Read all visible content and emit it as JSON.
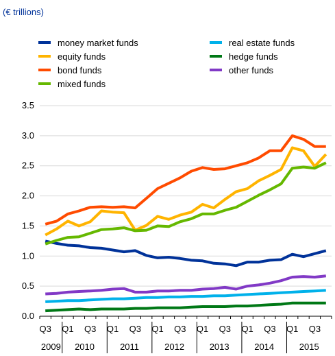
{
  "chart_data": {
    "type": "line",
    "unit_label": "(€ trillions)",
    "x": [
      "2009 Q3",
      "2009 Q4",
      "2010 Q1",
      "2010 Q2",
      "2010 Q3",
      "2010 Q4",
      "2011 Q1",
      "2011 Q2",
      "2011 Q3",
      "2011 Q4",
      "2012 Q1",
      "2012 Q2",
      "2012 Q3",
      "2012 Q4",
      "2013 Q1",
      "2013 Q2",
      "2013 Q3",
      "2013 Q4",
      "2014 Q1",
      "2014 Q2",
      "2014 Q3",
      "2014 Q4",
      "2015 Q1",
      "2015 Q2",
      "2015 Q3",
      "2015 Q4"
    ],
    "x_tick_labels": [
      "Q3",
      "Q1",
      "Q3",
      "Q1",
      "Q3",
      "Q1",
      "Q3",
      "Q1",
      "Q3",
      "Q1",
      "Q3",
      "Q1",
      "Q3"
    ],
    "year_labels": [
      "2009",
      "2010",
      "2011",
      "2012",
      "2013",
      "2014",
      "2015"
    ],
    "y_tick_labels": [
      "0.0",
      "0.5",
      "1.0",
      "1.5",
      "2.0",
      "2.5",
      "3.0",
      "3.5"
    ],
    "ylim": [
      0,
      3.5
    ],
    "ytick_step": 0.5,
    "grid": true,
    "legend_position": "top",
    "series": [
      {
        "name": "money market funds",
        "color": "#003299",
        "values": [
          1.25,
          1.21,
          1.18,
          1.17,
          1.14,
          1.13,
          1.1,
          1.07,
          1.09,
          1.01,
          0.97,
          0.98,
          0.96,
          0.93,
          0.92,
          0.88,
          0.87,
          0.84,
          0.9,
          0.9,
          0.93,
          0.94,
          1.03,
          0.99,
          1.04,
          1.09
        ]
      },
      {
        "name": "equity funds",
        "color": "#FFB400",
        "values": [
          1.35,
          1.45,
          1.58,
          1.5,
          1.57,
          1.75,
          1.73,
          1.72,
          1.43,
          1.51,
          1.66,
          1.61,
          1.68,
          1.73,
          1.86,
          1.8,
          1.94,
          2.07,
          2.12,
          2.25,
          2.34,
          2.44,
          2.8,
          2.75,
          2.49,
          2.69
        ]
      },
      {
        "name": "bond funds",
        "color": "#FF4B00",
        "values": [
          1.53,
          1.58,
          1.7,
          1.75,
          1.81,
          1.82,
          1.81,
          1.82,
          1.8,
          1.96,
          2.12,
          2.21,
          2.3,
          2.41,
          2.47,
          2.44,
          2.45,
          2.5,
          2.55,
          2.63,
          2.75,
          2.75,
          3.0,
          2.94,
          2.82,
          2.82
        ]
      },
      {
        "name": "mixed funds",
        "color": "#65B800",
        "values": [
          1.2,
          1.26,
          1.31,
          1.32,
          1.38,
          1.44,
          1.45,
          1.47,
          1.42,
          1.43,
          1.5,
          1.49,
          1.57,
          1.62,
          1.7,
          1.7,
          1.76,
          1.81,
          1.91,
          2.01,
          2.1,
          2.2,
          2.46,
          2.48,
          2.46,
          2.55
        ]
      },
      {
        "name": "real estate funds",
        "color": "#00B1EA",
        "values": [
          0.24,
          0.25,
          0.26,
          0.26,
          0.27,
          0.28,
          0.29,
          0.29,
          0.3,
          0.31,
          0.31,
          0.32,
          0.32,
          0.33,
          0.33,
          0.34,
          0.34,
          0.35,
          0.36,
          0.37,
          0.38,
          0.39,
          0.4,
          0.41,
          0.42,
          0.43
        ]
      },
      {
        "name": "hedge funds",
        "color": "#007816",
        "values": [
          0.09,
          0.1,
          0.11,
          0.12,
          0.11,
          0.12,
          0.12,
          0.12,
          0.13,
          0.13,
          0.14,
          0.14,
          0.14,
          0.15,
          0.16,
          0.16,
          0.16,
          0.17,
          0.17,
          0.18,
          0.19,
          0.2,
          0.22,
          0.22,
          0.22,
          0.22
        ]
      },
      {
        "name": "other funds",
        "color": "#8139C6",
        "values": [
          0.37,
          0.38,
          0.4,
          0.41,
          0.42,
          0.43,
          0.45,
          0.46,
          0.4,
          0.4,
          0.42,
          0.42,
          0.43,
          0.43,
          0.45,
          0.46,
          0.48,
          0.45,
          0.5,
          0.52,
          0.55,
          0.59,
          0.65,
          0.66,
          0.65,
          0.67
        ]
      }
    ]
  }
}
